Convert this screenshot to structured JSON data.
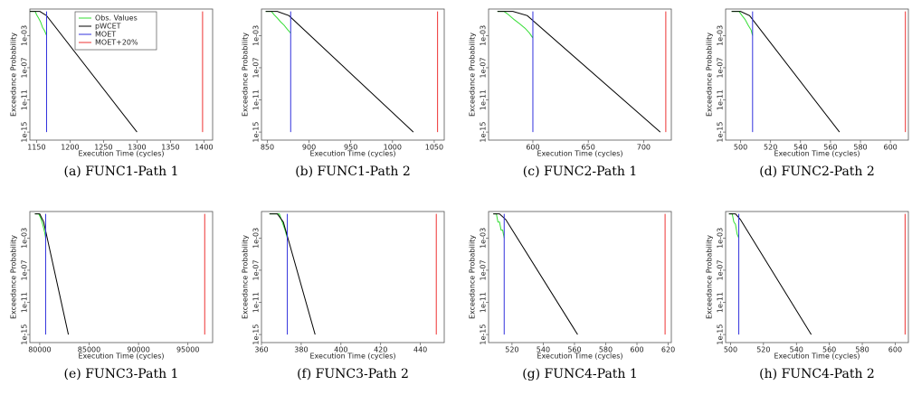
{
  "chart_data": [
    {
      "type": "line",
      "caption": "(a) FUNC1-Path 1",
      "x_label": "Execution Time (cycles)",
      "y_label": "Exceedance Probability",
      "ylog": true,
      "legend": "top",
      "xlim": [
        1140,
        1413
      ],
      "xticks": [
        1150,
        1200,
        1250,
        1300,
        1350,
        1400
      ],
      "ylim": [
        1e-16,
        2
      ],
      "yticks": [
        {
          "value": 0.001,
          "label": "1e-03"
        },
        {
          "value": 1e-07,
          "label": "1e-07"
        },
        {
          "value": 1e-11,
          "label": "1e-11"
        },
        {
          "value": 1e-15,
          "label": "1e-15"
        }
      ],
      "series": [
        {
          "name": "Obs. Values",
          "color": "#33dd33",
          "x": [
            1140,
            1148,
            1150,
            1153,
            1156,
            1159,
            1162,
            1165
          ],
          "values": [
            1,
            1,
            0.4,
            0.15,
            0.05,
            0.01,
            0.004,
            0.001
          ]
        },
        {
          "name": "pWCET",
          "color": "#000000",
          "x": [
            1140,
            1155,
            1165,
            1300
          ],
          "values": [
            1,
            1,
            0.3,
            1e-15
          ]
        },
        {
          "name": "MOET",
          "color": "#3333dd",
          "x": [
            1165,
            1165
          ],
          "values": [
            1,
            1e-15
          ]
        },
        {
          "name": "MOET+20%",
          "color": "#ee3333",
          "x": [
            1398,
            1398
          ],
          "values": [
            1,
            1e-15
          ]
        }
      ]
    },
    {
      "type": "line",
      "caption": "(b) FUNC1-Path 2",
      "x_label": "Execution Time (cycles)",
      "y_label": "Exceedance Probability",
      "ylog": true,
      "xlim": [
        843,
        1062
      ],
      "xticks": [
        850,
        900,
        950,
        1000,
        1050
      ],
      "ylim": [
        1e-16,
        2
      ],
      "yticks": [
        {
          "value": 0.001,
          "label": "1e-03"
        },
        {
          "value": 1e-07,
          "label": "1e-07"
        },
        {
          "value": 1e-11,
          "label": "1e-11"
        },
        {
          "value": 1e-15,
          "label": "1e-15"
        }
      ],
      "series": [
        {
          "color": "#33dd33",
          "x": [
            848,
            855,
            858,
            862,
            866,
            870,
            874,
            878
          ],
          "values": [
            1,
            1,
            0.4,
            0.15,
            0.05,
            0.02,
            0.006,
            0.002
          ]
        },
        {
          "color": "#000000",
          "x": [
            848,
            862,
            876,
            1025
          ],
          "values": [
            1,
            1,
            0.3,
            1e-15
          ]
        },
        {
          "color": "#3333dd",
          "x": [
            878,
            878
          ],
          "values": [
            1,
            1e-15
          ]
        },
        {
          "color": "#ee3333",
          "x": [
            1054,
            1054
          ],
          "values": [
            1,
            1e-15
          ]
        }
      ]
    },
    {
      "type": "line",
      "caption": "(c) FUNC2-Path 1",
      "x_label": "Execution Time (cycles)",
      "y_label": "Exceedance Probability",
      "ylog": true,
      "xlim": [
        560,
        725
      ],
      "xticks": [
        600,
        650,
        700
      ],
      "ylim": [
        1e-16,
        2
      ],
      "yticks": [
        {
          "value": 0.001,
          "label": "1e-03"
        },
        {
          "value": 1e-07,
          "label": "1e-07"
        },
        {
          "value": 1e-11,
          "label": "1e-11"
        },
        {
          "value": 1e-15,
          "label": "1e-15"
        }
      ],
      "series": [
        {
          "color": "#33dd33",
          "x": [
            568,
            574,
            578,
            583,
            588,
            593,
            597,
            600
          ],
          "values": [
            1,
            1,
            0.4,
            0.1,
            0.03,
            0.008,
            0.002,
            0.0005
          ]
        },
        {
          "color": "#000000",
          "x": [
            568,
            582,
            595,
            715
          ],
          "values": [
            1,
            1,
            0.3,
            1e-15
          ]
        },
        {
          "color": "#3333dd",
          "x": [
            600,
            600
          ],
          "values": [
            1,
            1e-15
          ]
        },
        {
          "color": "#ee3333",
          "x": [
            720,
            720
          ],
          "values": [
            1,
            1e-15
          ]
        }
      ]
    },
    {
      "type": "line",
      "caption": "(d) FUNC2-Path 2",
      "x_label": "Execution Time (cycles)",
      "y_label": "Exceedance Probability",
      "ylog": true,
      "xlim": [
        490,
        612
      ],
      "xticks": [
        500,
        520,
        540,
        560,
        580,
        600
      ],
      "ylim": [
        1e-16,
        2
      ],
      "yticks": [
        {
          "value": 0.001,
          "label": "1e-03"
        },
        {
          "value": 1e-07,
          "label": "1e-07"
        },
        {
          "value": 1e-11,
          "label": "1e-11"
        },
        {
          "value": 1e-15,
          "label": "1e-15"
        }
      ],
      "series": [
        {
          "color": "#33dd33",
          "x": [
            494,
            499,
            501,
            503,
            505,
            507,
            508
          ],
          "values": [
            1,
            1,
            0.3,
            0.1,
            0.02,
            0.005,
            0.001
          ]
        },
        {
          "color": "#000000",
          "x": [
            494,
            500,
            506,
            566
          ],
          "values": [
            1,
            1,
            0.3,
            1e-15
          ]
        },
        {
          "color": "#3333dd",
          "x": [
            508,
            508
          ],
          "values": [
            1,
            1e-15
          ]
        },
        {
          "color": "#ee3333",
          "x": [
            610,
            610
          ],
          "values": [
            1,
            1e-15
          ]
        }
      ]
    },
    {
      "type": "line",
      "caption": "(e) FUNC3-Path 1",
      "x_label": "Execution Time (cycles)",
      "y_label": "Exceedance Probability",
      "ylog": true,
      "xlim": [
        79000,
        97500
      ],
      "xticks": [
        80000,
        85000,
        90000,
        95000
      ],
      "ylim": [
        1e-16,
        2
      ],
      "yticks": [
        {
          "value": 0.001,
          "label": "1e-03"
        },
        {
          "value": 1e-07,
          "label": "1e-07"
        },
        {
          "value": 1e-11,
          "label": "1e-11"
        },
        {
          "value": 1e-15,
          "label": "1e-15"
        }
      ],
      "series": [
        {
          "color": "#33dd33",
          "x": [
            79500,
            79900,
            80100,
            80300,
            80500,
            80600
          ],
          "values": [
            1,
            1,
            0.3,
            0.05,
            0.005,
            0.001
          ]
        },
        {
          "color": "#000000",
          "x": [
            79500,
            80000,
            80400,
            82900
          ],
          "values": [
            1,
            1,
            0.1,
            1e-15
          ]
        },
        {
          "color": "#3333dd",
          "x": [
            80600,
            80600
          ],
          "values": [
            1,
            1e-15
          ]
        },
        {
          "color": "#ee3333",
          "x": [
            96700,
            96700
          ],
          "values": [
            1,
            1e-15
          ]
        }
      ]
    },
    {
      "type": "line",
      "caption": "(f) FUNC3-Path 2",
      "x_label": "Execution Time (cycles)",
      "y_label": "Exceedance Probability",
      "ylog": true,
      "xlim": [
        360,
        452
      ],
      "xticks": [
        360,
        380,
        400,
        420,
        440
      ],
      "ylim": [
        1e-16,
        2
      ],
      "yticks": [
        {
          "value": 0.001,
          "label": "1e-03"
        },
        {
          "value": 1e-07,
          "label": "1e-07"
        },
        {
          "value": 1e-11,
          "label": "1e-11"
        },
        {
          "value": 1e-15,
          "label": "1e-15"
        }
      ],
      "series": [
        {
          "color": "#33dd33",
          "x": [
            364,
            369,
            370,
            371,
            372,
            373
          ],
          "values": [
            1,
            1,
            0.2,
            0.04,
            0.008,
            0.001
          ]
        },
        {
          "color": "#000000",
          "x": [
            364,
            368,
            371,
            387
          ],
          "values": [
            1,
            1,
            0.1,
            1e-15
          ]
        },
        {
          "color": "#3333dd",
          "x": [
            373,
            373
          ],
          "values": [
            1,
            1e-15
          ]
        },
        {
          "color": "#ee3333",
          "x": [
            448,
            448
          ],
          "values": [
            1,
            1e-15
          ]
        }
      ]
    },
    {
      "type": "line",
      "caption": "(g) FUNC4-Path 1",
      "x_label": "Execution Time (cycles)",
      "y_label": "Exceedance Probability",
      "ylog": true,
      "xlim": [
        505,
        622
      ],
      "xticks": [
        520,
        540,
        560,
        580,
        600,
        620
      ],
      "ylim": [
        1e-16,
        2
      ],
      "yticks": [
        {
          "value": 0.001,
          "label": "1e-03"
        },
        {
          "value": 1e-07,
          "label": "1e-07"
        },
        {
          "value": 1e-11,
          "label": "1e-11"
        },
        {
          "value": 1e-15,
          "label": "1e-15"
        }
      ],
      "series": [
        {
          "color": "#33dd33",
          "x": [
            508,
            510,
            511,
            512,
            513,
            514,
            515
          ],
          "values": [
            1,
            1,
            0.1,
            0.1,
            0.01,
            0.01,
            0.001
          ]
        },
        {
          "color": "#000000",
          "x": [
            508,
            512,
            516,
            562
          ],
          "values": [
            1,
            1,
            0.2,
            1e-15
          ]
        },
        {
          "color": "#3333dd",
          "x": [
            515,
            515
          ],
          "values": [
            1,
            1e-15
          ]
        },
        {
          "color": "#ee3333",
          "x": [
            618,
            618
          ],
          "values": [
            1,
            1e-15
          ]
        }
      ]
    },
    {
      "type": "line",
      "caption": "(h) FUNC4-Path 2",
      "x_label": "Execution Time (cycles)",
      "y_label": "Exceedance Probability",
      "ylog": true,
      "xlim": [
        497,
        608
      ],
      "xticks": [
        500,
        520,
        540,
        560,
        580,
        600
      ],
      "ylim": [
        1e-16,
        2
      ],
      "yticks": [
        {
          "value": 0.001,
          "label": "1e-03"
        },
        {
          "value": 1e-07,
          "label": "1e-07"
        },
        {
          "value": 1e-11,
          "label": "1e-11"
        },
        {
          "value": 1e-15,
          "label": "1e-15"
        }
      ],
      "series": [
        {
          "color": "#33dd33",
          "x": [
            499,
            501,
            502,
            503,
            504,
            505
          ],
          "values": [
            1,
            1,
            0.1,
            0.05,
            0.003,
            0.001
          ]
        },
        {
          "color": "#000000",
          "x": [
            499,
            503,
            506,
            549
          ],
          "values": [
            1,
            1,
            0.2,
            1e-15
          ]
        },
        {
          "color": "#3333dd",
          "x": [
            505,
            505
          ],
          "values": [
            1,
            1e-15
          ]
        },
        {
          "color": "#ee3333",
          "x": [
            606,
            606
          ],
          "values": [
            1,
            1e-15
          ]
        }
      ]
    }
  ]
}
